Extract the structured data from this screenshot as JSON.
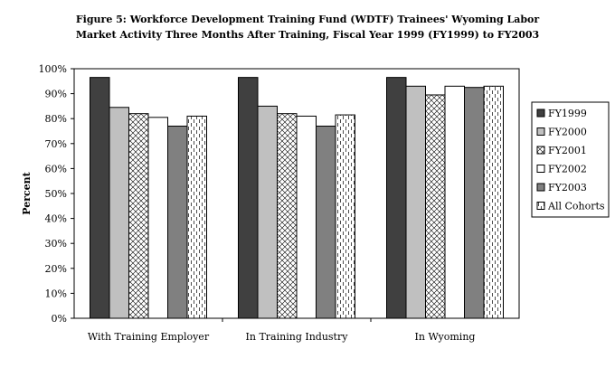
{
  "chart_data": {
    "type": "bar",
    "title_lines": [
      "Figure 5: Workforce Development Training Fund (WDTF) Trainees' Wyoming Labor",
      "Market Activity Three Months After Training, Fiscal Year 1999 (FY1999) to FY2003"
    ],
    "ylabel": "Percent",
    "xlabel": "",
    "ylim": [
      0,
      100
    ],
    "y_ticks": [
      "0%",
      "10%",
      "20%",
      "30%",
      "40%",
      "50%",
      "60%",
      "70%",
      "80%",
      "90%",
      "100%"
    ],
    "grid": false,
    "legend_position": "right",
    "categories": [
      "With Training Employer",
      "In Training Industry",
      "In Wyoming"
    ],
    "series": [
      {
        "name": "FY1999",
        "values": [
          96.5,
          96.5,
          96.5
        ],
        "pattern": "solid",
        "color": "#404040"
      },
      {
        "name": "FY2000",
        "values": [
          84.5,
          85.0,
          93.0
        ],
        "pattern": "solid",
        "color": "#c0c0c0"
      },
      {
        "name": "FY2001",
        "values": [
          82.0,
          82.0,
          89.5
        ],
        "pattern": "diamond",
        "color": "#ffffff"
      },
      {
        "name": "FY2002",
        "values": [
          80.5,
          81.0,
          93.0
        ],
        "pattern": "solid",
        "color": "#ffffff"
      },
      {
        "name": "FY2003",
        "values": [
          77.0,
          77.0,
          92.5
        ],
        "pattern": "solid",
        "color": "#808080"
      },
      {
        "name": "All Cohorts",
        "values": [
          81.0,
          81.5,
          93.0
        ],
        "pattern": "dashed",
        "color": "#ffffff"
      }
    ]
  }
}
